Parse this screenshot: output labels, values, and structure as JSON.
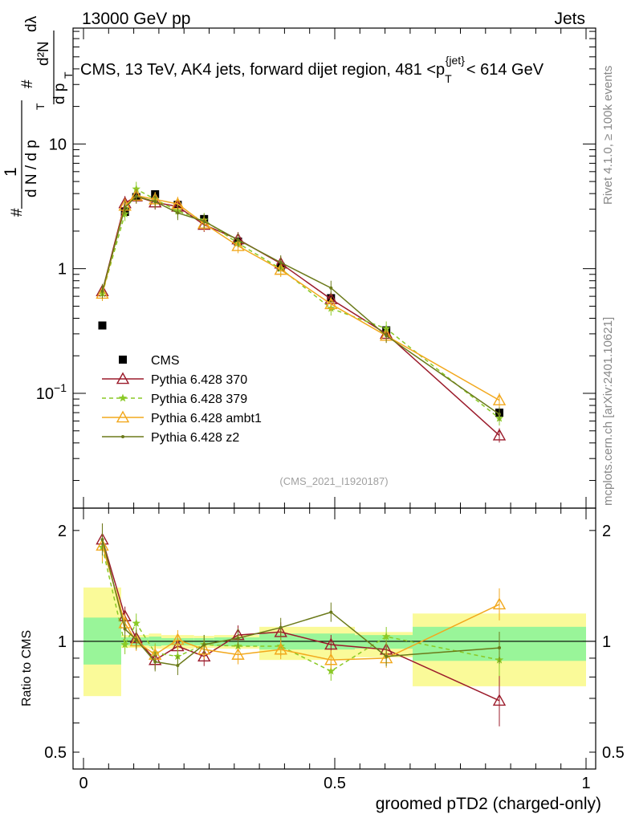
{
  "header": {
    "energy_label": "13000 GeV pp",
    "category_label": "Jets",
    "title_prefix": "CMS, 13 TeV, AK4 jets, forward dijet region, 481 <p",
    "title_sub": "T",
    "title_sup": "{jet}",
    "title_suffix": "< 614 GeV"
  },
  "side_labels": {
    "rivet": "Rivet 4.1.0, ≥ 100k events",
    "mcplots": "mcplots.cern.ch [arXiv:2401.10621]"
  },
  "analysis_id": "(CMS_2021_I1920187)",
  "colors": {
    "data": "#000000",
    "p370": "#9b1b2b",
    "p379": "#8ac926",
    "ambt1": "#f2a81d",
    "z2": "#6b7a1a",
    "band_inner": "#99f599",
    "band_outer": "#fafa99"
  },
  "chart_data": [
    {
      "type": "scatter",
      "panel": "main",
      "scale": "log",
      "ylabel_parts": [
        "#",
        "1",
        "d N / d p",
        "T",
        "#",
        "d p",
        "T",
        "d²N",
        "dλ"
      ],
      "xlim": [
        0,
        1
      ],
      "ylim": [
        0.012,
        85
      ],
      "y_ticks": [
        {
          "value": 0.1,
          "label": "10",
          "sup": "−1"
        },
        {
          "value": 1,
          "label": "1"
        },
        {
          "value": 10,
          "label": "10"
        }
      ],
      "x": [
        0.0375,
        0.0825,
        0.105,
        0.1425,
        0.1875,
        0.24,
        0.3075,
        0.3925,
        0.4925,
        0.6025,
        0.8275
      ],
      "series": [
        {
          "name": "CMS",
          "key": "data",
          "marker": "square",
          "values": [
            0.35,
            2.85,
            3.75,
            3.95,
            3.25,
            2.5,
            1.65,
            1.03,
            0.58,
            0.32,
            0.07
          ]
        },
        {
          "name": "Pythia 6.428 370",
          "key": "p370",
          "marker": "triangle-open",
          "dash": "",
          "values": [
            0.66,
            3.35,
            3.8,
            3.4,
            3.15,
            2.25,
            1.72,
            1.1,
            0.57,
            0.3,
            0.046
          ]
        },
        {
          "name": "Pythia 6.428 379",
          "key": "p379",
          "marker": "star",
          "dash": "5,4",
          "values": [
            0.63,
            2.75,
            4.35,
            3.6,
            2.9,
            2.45,
            1.6,
            1.0,
            0.48,
            0.33,
            0.063
          ]
        },
        {
          "name": "Pythia 6.428 ambt1",
          "key": "ambt1",
          "marker": "triangle-open",
          "dash": "",
          "values": [
            0.63,
            3.2,
            3.85,
            3.6,
            3.3,
            2.3,
            1.52,
            0.98,
            0.52,
            0.29,
            0.088
          ]
        },
        {
          "name": "Pythia 6.428 z2",
          "key": "z2",
          "marker": "dot",
          "dash": "",
          "values": [
            0.66,
            3.1,
            3.8,
            3.45,
            2.8,
            2.4,
            1.7,
            1.12,
            0.7,
            0.29,
            0.068
          ]
        }
      ]
    },
    {
      "type": "line",
      "panel": "ratio",
      "scale": "log",
      "ylabel": "Ratio to CMS",
      "xlabel": "groomed pTD2 (charged-only)",
      "xlim": [
        0,
        1
      ],
      "ylim": [
        0.45,
        2.3
      ],
      "x_ticks": [
        {
          "value": 0,
          "label": "0"
        },
        {
          "value": 0.5,
          "label": "0.5"
        },
        {
          "value": 1,
          "label": "1"
        }
      ],
      "y_ticks": [
        {
          "value": 0.5,
          "label": "0.5"
        },
        {
          "value": 1,
          "label": "1"
        },
        {
          "value": 2,
          "label": "2"
        }
      ],
      "bands": [
        {
          "x0": 0.0,
          "x1": 0.075,
          "inner": [
            0.865,
            1.16
          ],
          "outer": [
            0.71,
            1.4
          ]
        },
        {
          "x0": 0.075,
          "x1": 0.13,
          "inner": [
            0.975,
            1.025
          ],
          "outer": [
            0.96,
            1.04
          ]
        },
        {
          "x0": 0.13,
          "x1": 0.155,
          "inner": [
            0.97,
            1.03
          ],
          "outer": [
            0.955,
            1.05
          ]
        },
        {
          "x0": 0.155,
          "x1": 0.22,
          "inner": [
            0.975,
            1.02
          ],
          "outer": [
            0.955,
            1.04
          ]
        },
        {
          "x0": 0.22,
          "x1": 0.26,
          "inner": [
            0.975,
            1.02
          ],
          "outer": [
            0.96,
            1.035
          ]
        },
        {
          "x0": 0.26,
          "x1": 0.35,
          "inner": [
            0.97,
            1.025
          ],
          "outer": [
            0.955,
            1.04
          ]
        },
        {
          "x0": 0.35,
          "x1": 0.54,
          "inner": [
            0.95,
            1.05
          ],
          "outer": [
            0.89,
            1.095
          ]
        },
        {
          "x0": 0.54,
          "x1": 0.655,
          "inner": [
            0.955,
            1.04
          ],
          "outer": [
            0.905,
            1.06
          ]
        },
        {
          "x0": 0.655,
          "x1": 1.0,
          "inner": [
            0.885,
            1.095
          ],
          "outer": [
            0.755,
            1.19
          ]
        }
      ],
      "x": [
        0.0375,
        0.0825,
        0.105,
        0.1425,
        0.1875,
        0.24,
        0.3075,
        0.3925,
        0.4925,
        0.6025,
        0.8275
      ],
      "series": [
        {
          "name": "Pythia 6.428 370",
          "key": "p370",
          "marker": "triangle-open",
          "dash": "",
          "values": [
            1.89,
            1.17,
            1.02,
            0.89,
            0.97,
            0.91,
            1.04,
            1.06,
            0.98,
            0.95,
            0.69
          ]
        },
        {
          "name": "Pythia 6.428 379",
          "key": "p379",
          "marker": "star",
          "dash": "5,4",
          "values": [
            1.8,
            0.98,
            1.12,
            0.93,
            0.91,
            0.98,
            0.97,
            0.97,
            0.83,
            1.03,
            0.89
          ]
        },
        {
          "name": "Pythia 6.428 ambt1",
          "key": "ambt1",
          "marker": "triangle-open",
          "dash": "",
          "values": [
            1.82,
            1.12,
            1.0,
            0.92,
            1.01,
            0.95,
            0.92,
            0.95,
            0.89,
            0.9,
            1.26
          ]
        },
        {
          "name": "Pythia 6.428 z2",
          "key": "z2",
          "marker": "dot",
          "dash": "",
          "values": [
            1.89,
            1.08,
            1.01,
            0.88,
            0.86,
            0.98,
            1.02,
            1.09,
            1.2,
            0.91,
            0.96
          ]
        }
      ]
    }
  ]
}
